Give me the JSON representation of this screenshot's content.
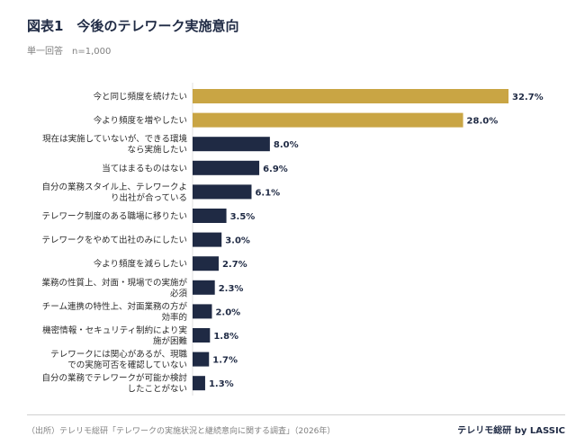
{
  "colors": {
    "highlight": "#c9a544",
    "default": "#1f2a44"
  },
  "chart_data": {
    "type": "bar",
    "orientation": "horizontal",
    "title": "図表1　今後のテレワーク実施意向",
    "subtitle": "単一回答　n=1,000",
    "categories": [
      "今と同じ頻度を続けたい",
      "今より頻度を増やしたい",
      "現在は実施していないが、できる環境なら実施したい",
      "当てはまるものはない",
      "自分の業務スタイル上、テレワークより出社が合っている",
      "テレワーク制度のある職場に移りたい",
      "テレワークをやめて出社のみにしたい",
      "今より頻度を減らしたい",
      "業務の性質上、対面・現場での実施が必須",
      "チーム連携の特性上、対面業務の方が効率的",
      "機密情報・セキュリティ制約により実施が困難",
      "テレワークには関心があるが、現職での実施可否を確認していない",
      "自分の業務でテレワークが可能か検討したことがない"
    ],
    "label_lines": [
      [
        "今と同じ頻度を続けたい"
      ],
      [
        "今より頻度を増やしたい"
      ],
      [
        "現在は実施していないが、できる環境",
        "なら実施したい"
      ],
      [
        "当てはまるものはない"
      ],
      [
        "自分の業務スタイル上、テレワークよ",
        "り出社が合っている"
      ],
      [
        "テレワーク制度のある職場に移りたい"
      ],
      [
        "テレワークをやめて出社のみにしたい"
      ],
      [
        "今より頻度を減らしたい"
      ],
      [
        "業務の性質上、対面・現場での実施が",
        "必須"
      ],
      [
        "チーム連携の特性上、対面業務の方が",
        "効率的"
      ],
      [
        "機密情報・セキュリティ制約により実",
        "施が困難"
      ],
      [
        "テレワークには関心があるが、現職",
        "での実施可否を確認していない"
      ],
      [
        "自分の業務でテレワークが可能か検討",
        "したことがない"
      ]
    ],
    "values": [
      32.7,
      28.0,
      8.0,
      6.9,
      6.1,
      3.5,
      3.0,
      2.7,
      2.3,
      2.0,
      1.8,
      1.7,
      1.3
    ],
    "value_labels": [
      "32.7%",
      "28.0%",
      "8.0%",
      "6.9%",
      "6.1%",
      "3.5%",
      "3.0%",
      "2.7%",
      "2.3%",
      "2.0%",
      "1.8%",
      "1.7%",
      "1.3%"
    ],
    "highlighted": [
      true,
      true,
      false,
      false,
      false,
      false,
      false,
      false,
      false,
      false,
      false,
      false,
      false
    ],
    "xlim": [
      0,
      32.7
    ],
    "grid": false,
    "legend": "none"
  },
  "footer": {
    "source": "（出所）テレリモ総研「テレワークの実施状況と継続意向に関する調査」（2026年）",
    "brand": "テレリモ総研 by LASSIC"
  }
}
